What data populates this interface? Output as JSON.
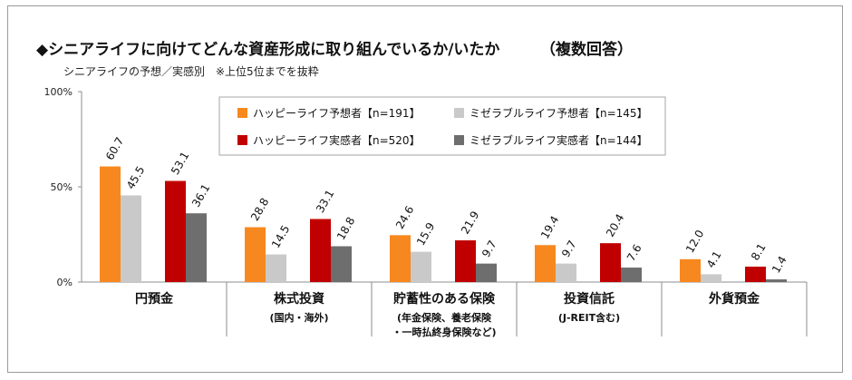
{
  "header": {
    "title": "◆シニアライフに向けてどんな資産形成に取り組んでいるか/いたか",
    "count_note": "（複数回答）",
    "subtitle": "シニアライフの予想／実感別　※上位5位までを抜粋"
  },
  "colors": {
    "happy_expect": "#f7881f",
    "misery_expect": "#c9c9c9",
    "happy_actual": "#c00000",
    "misery_actual": "#6e6e6e",
    "axis": "#8c8c8c",
    "legend_border": "#a6a6a6"
  },
  "chart_data": {
    "type": "bar",
    "categories": [
      "円預金",
      "株式投資",
      "貯蓄性のある保険",
      "投資信託",
      "外貨預金"
    ],
    "category_notes": [
      [],
      [
        "(国内・海外)"
      ],
      [
        "(年金保険、養老保険",
        "・一時払終身保険など)"
      ],
      [
        "(J-REIT含む)"
      ],
      []
    ],
    "series": [
      {
        "name": "ハッピーライフ予想者【n=191】",
        "values": [
          60.7,
          28.8,
          24.6,
          19.4,
          12.0
        ]
      },
      {
        "name": "ミゼラブルライフ予想者【n=145】",
        "values": [
          45.5,
          14.5,
          15.9,
          9.7,
          4.1
        ]
      },
      {
        "name": "ハッピーライフ実感者【n=520】",
        "values": [
          53.1,
          33.1,
          21.9,
          20.4,
          8.1
        ]
      },
      {
        "name": "ミゼラブルライフ実感者【n=144】",
        "values": [
          36.1,
          18.8,
          9.7,
          7.6,
          1.4
        ]
      }
    ],
    "yticks": [
      "0%",
      "50%",
      "100%"
    ],
    "ylim": [
      0,
      100
    ],
    "legend_position": "top-right",
    "grid": false
  }
}
